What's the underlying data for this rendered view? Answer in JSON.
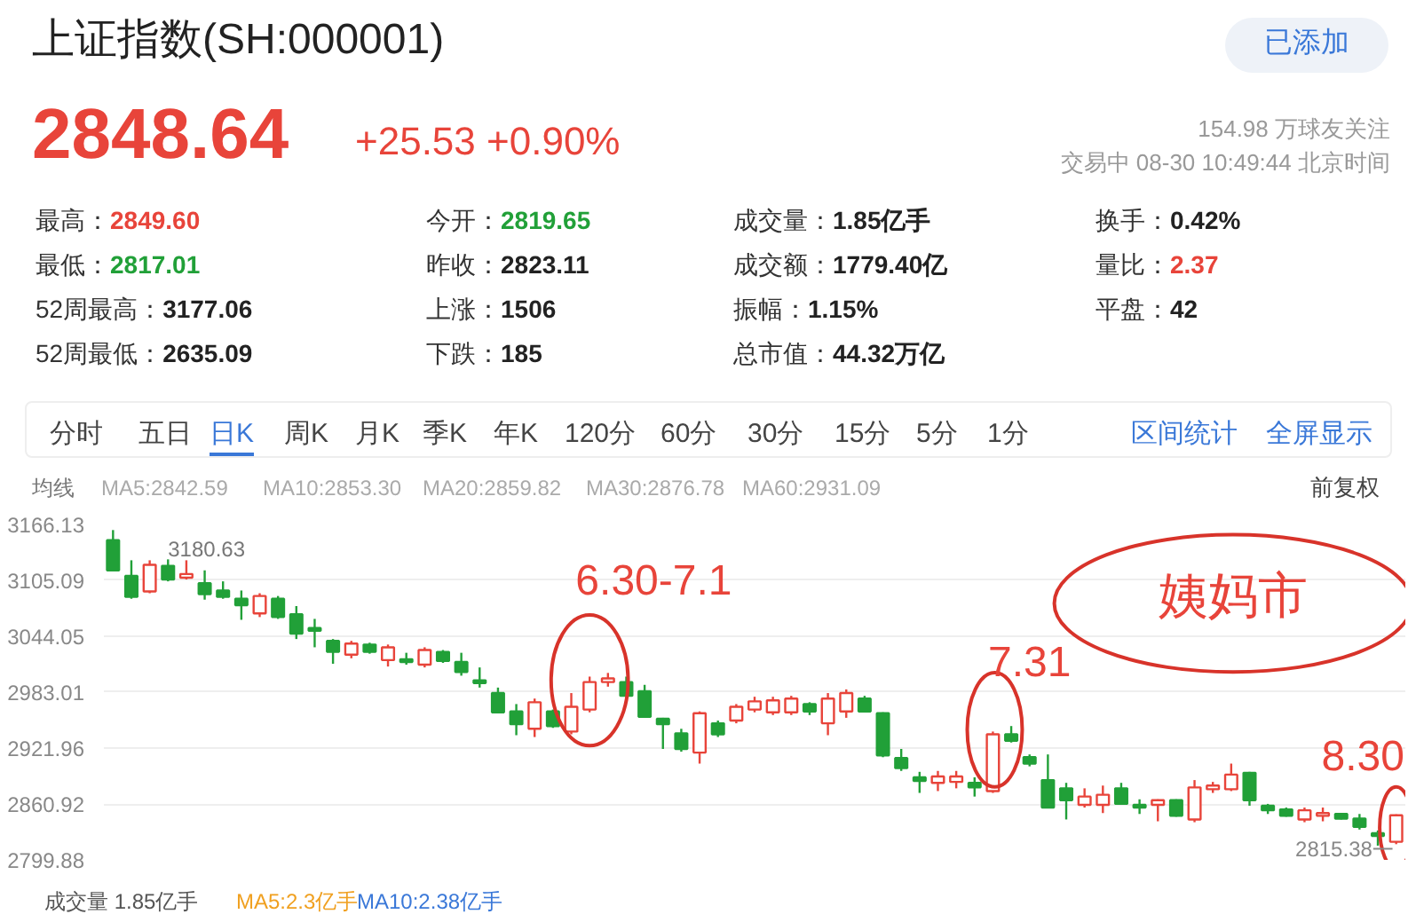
{
  "chart_data": {
    "type": "candlestick",
    "title": "上证指数(SH:000001)",
    "annotations": [
      "2848.64",
      "+25.53 +0.90%",
      "154.98 万球友关注",
      "交易中 08-30 10:49:44 北京时间",
      "已添加",
      "最高：",
      "2849.60",
      "今开：",
      "2819.65",
      "成交量：",
      "1.85亿手",
      "换手：",
      "0.42%",
      "最低：",
      "2817.01",
      "昨收：",
      "2823.11",
      "成交额：",
      "1779.40亿",
      "量比：",
      "2.37",
      "52周最高：",
      "3177.06",
      "上涨：",
      "1506",
      "振幅：",
      "1.15%",
      "平盘：",
      "42",
      "52周最低：",
      "2635.09",
      "下跌：",
      "185",
      "总市值：",
      "44.32万亿",
      "分时",
      "五日",
      "日K",
      "周K",
      "月K",
      "季K",
      "年K",
      "120分",
      "60分",
      "30分",
      "15分",
      "5分",
      "1分",
      "区间统计",
      "全屏显示",
      "均线",
      "MA5:2842.59",
      "MA10:2853.30",
      "MA20:2859.82",
      "MA30:2876.78",
      "MA60:2931.09",
      "前复权",
      "成交量 1.85亿手",
      "MA5:2.3亿手",
      "MA10:2.38亿手",
      "6.30-7.1",
      "7.31",
      "8.30",
      "姨妈市",
      "3180.63",
      "2815.38"
    ],
    "categories": [
      null,
      null,
      null,
      null,
      null,
      null,
      null,
      null,
      null,
      null,
      null,
      null,
      null,
      null,
      null,
      null,
      null,
      null,
      null,
      null,
      null,
      null,
      null,
      null,
      null,
      null,
      null,
      null,
      null,
      null,
      null,
      null,
      null,
      null,
      null,
      null,
      null,
      null,
      null,
      null,
      null,
      null,
      null,
      null,
      null,
      null,
      null,
      null,
      null,
      null,
      null,
      null,
      null,
      null,
      null,
      null,
      null,
      null,
      null,
      null,
      null,
      null,
      null,
      null,
      null,
      null,
      null,
      null,
      null,
      null,
      null
    ],
    "ohlc": [
      [
        3149,
        3160,
        3115,
        3116
      ],
      [
        3110,
        3127,
        3085,
        3087
      ],
      [
        3093,
        3127,
        3091,
        3122
      ],
      [
        3121,
        3128,
        3104,
        3106
      ],
      [
        3108,
        3127,
        3106,
        3112
      ],
      [
        3102,
        3116,
        3084,
        3090
      ],
      [
        3094,
        3104,
        3085,
        3087
      ],
      [
        3085,
        3094,
        3062,
        3078
      ],
      [
        3069,
        3091,
        3065,
        3088
      ],
      [
        3085,
        3088,
        3063,
        3065
      ],
      [
        3068,
        3077,
        3041,
        3047
      ],
      [
        3053,
        3063,
        3032,
        3050
      ],
      [
        3039,
        3041,
        3014,
        3027
      ],
      [
        3024,
        3039,
        3020,
        3036
      ],
      [
        3035,
        3037,
        3025,
        3027
      ],
      [
        3018,
        3035,
        3011,
        3032
      ],
      [
        3019,
        3026,
        3013,
        3016
      ],
      [
        3013,
        3032,
        3010,
        3029
      ],
      [
        3027,
        3029,
        3015,
        3017
      ],
      [
        3016,
        3026,
        3001,
        3005
      ],
      [
        2996,
        3010,
        2988,
        2993
      ],
      [
        2982,
        2988,
        2960,
        2961
      ],
      [
        2962,
        2970,
        2936,
        2948
      ],
      [
        2943,
        2976,
        2934,
        2972
      ],
      [
        2962,
        2964,
        2944,
        2946
      ],
      [
        2940,
        2982,
        2937,
        2967
      ],
      [
        2964,
        3000,
        2961,
        2994
      ],
      [
        2994,
        3004,
        2989,
        2998
      ],
      [
        2994,
        3000,
        2978,
        2979
      ],
      [
        2984,
        2991,
        2955,
        2956
      ],
      [
        2954,
        2955,
        2921,
        2948
      ],
      [
        2938,
        2943,
        2918,
        2921
      ],
      [
        2917,
        2962,
        2905,
        2960
      ],
      [
        2949,
        2952,
        2934,
        2937
      ],
      [
        2952,
        2970,
        2949,
        2967
      ],
      [
        2964,
        2978,
        2961,
        2973
      ],
      [
        2961,
        2978,
        2958,
        2974
      ],
      [
        2961,
        2979,
        2958,
        2976
      ],
      [
        2970,
        2972,
        2958,
        2962
      ],
      [
        2949,
        2982,
        2936,
        2976
      ],
      [
        2962,
        2986,
        2955,
        2982
      ],
      [
        2976,
        2979,
        2961,
        2962
      ],
      [
        2960,
        2961,
        2912,
        2914
      ],
      [
        2911,
        2921,
        2897,
        2900
      ],
      [
        2890,
        2896,
        2873,
        2886
      ],
      [
        2884,
        2897,
        2875,
        2891
      ],
      [
        2885,
        2897,
        2878,
        2891
      ],
      [
        2884,
        2890,
        2869,
        2879
      ],
      [
        2875,
        2940,
        2873,
        2937
      ],
      [
        2937,
        2946,
        2928,
        2930
      ],
      [
        2912,
        2915,
        2902,
        2905
      ],
      [
        2887,
        2915,
        2857,
        2857
      ],
      [
        2878,
        2884,
        2844,
        2865
      ],
      [
        2860,
        2878,
        2857,
        2869
      ],
      [
        2860,
        2881,
        2851,
        2871
      ],
      [
        2878,
        2884,
        2860,
        2861
      ],
      [
        2860,
        2866,
        2850,
        2857
      ],
      [
        2860,
        2866,
        2842,
        2865
      ],
      [
        2865,
        2866,
        2847,
        2848
      ],
      [
        2844,
        2887,
        2841,
        2879
      ],
      [
        2877,
        2885,
        2873,
        2881
      ],
      [
        2877,
        2905,
        2875,
        2893
      ],
      [
        2895,
        2896,
        2859,
        2865
      ],
      [
        2859,
        2861,
        2850,
        2854
      ],
      [
        2855,
        2857,
        2847,
        2848
      ],
      [
        2844,
        2857,
        2841,
        2854
      ],
      [
        2848,
        2857,
        2842,
        2851
      ],
      [
        2850,
        2851,
        2844,
        2845
      ],
      [
        2845,
        2850,
        2833,
        2836
      ],
      [
        2829,
        2832,
        2815.38,
        2826
      ],
      [
        2819.65,
        2849.6,
        2817.01,
        2848.64
      ]
    ],
    "ylim": [
      2799.88,
      3166.13
    ],
    "yticks": [
      3166.13,
      3105.09,
      3044.05,
      2983.01,
      2921.96,
      2860.92,
      2799.88
    ],
    "grid": "y",
    "tick_labels": "y"
  }
}
